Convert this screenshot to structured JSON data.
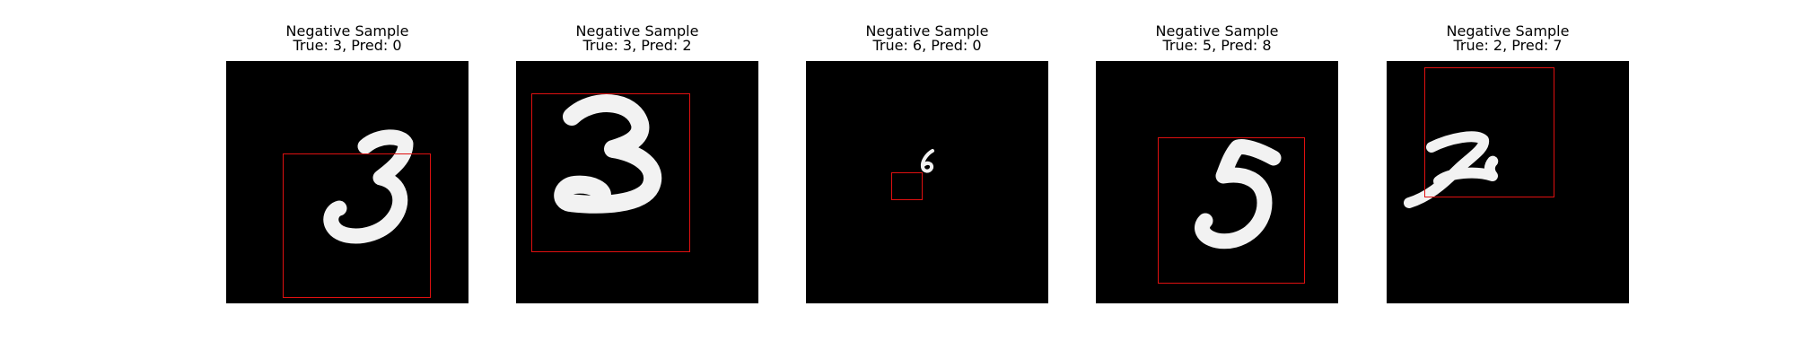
{
  "panels": [
    {
      "title": "Negative Sample",
      "subtitle": "True: 3, Pred: 0",
      "digit": "3"
    },
    {
      "title": "Negative Sample",
      "subtitle": "True: 3, Pred: 2",
      "digit": "3"
    },
    {
      "title": "Negative Sample",
      "subtitle": "True: 6, Pred: 0",
      "digit": "6"
    },
    {
      "title": "Negative Sample",
      "subtitle": "True: 5, Pred: 8",
      "digit": "5"
    },
    {
      "title": "Negative Sample",
      "subtitle": "True: 2, Pred: 7",
      "digit": "2"
    }
  ],
  "colors": {
    "background": "#000000",
    "stroke": "#f2f2f2",
    "box": "#e01010"
  }
}
